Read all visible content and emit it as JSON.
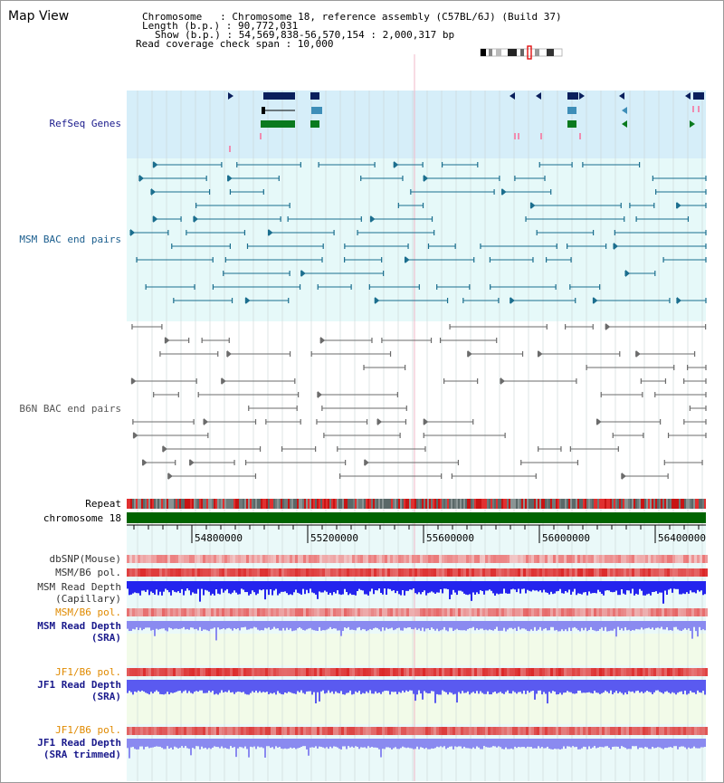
{
  "title": "Map View",
  "info": {
    "chromosome": "Chromosome   : Chromosome 18, reference assembly (C57BL/6J) (Build 37)",
    "length": "Length (b.p.) : 90,772,031",
    "show": "Show (b.p.) : 54,569,838-56,570,154 : 2,000,317 bp",
    "coverage": "Read coverage check span : 10,000"
  },
  "tracks": {
    "refseq": "RefSeq Genes",
    "msm_bac": "MSM BAC end pairs",
    "b6n_bac": "B6N BAC end pairs",
    "repeat": "Repeat",
    "chromosome": "chromosome 18",
    "dbsnp": "dbSNP(Mouse)",
    "msm_pol": "MSM/B6 pol.",
    "msm_depth_cap_1": "MSM Read Depth",
    "msm_depth_cap_2": "(Capillary)",
    "msm_pol_2": "MSM/B6 pol.",
    "msm_depth_sra_1": "MSM Read Depth",
    "msm_depth_sra_2": "(SRA)",
    "jf1_pol": "JF1/B6 pol.",
    "jf1_depth_sra_1": "JF1 Read Depth",
    "jf1_depth_sra_2": "(SRA)",
    "jf1_pol_2": "JF1/B6 pol.",
    "jf1_depth_trim_1": "JF1 Read Depth",
    "jf1_depth_trim_2": "(SRA trimmed)"
  },
  "axis_ticks": [
    "54800000",
    "55200000",
    "55600000",
    "56000000",
    "56400000"
  ],
  "colors": {
    "refseq_bg": "#d6eef9",
    "msm_bg": "#e6f9f9",
    "gene_navy": "#0a1f5c",
    "gene_teal": "#3e8eb8",
    "gene_green": "#0a7a1e",
    "msm_pair": "#1b6e8e",
    "b6n_pair": "#6b6b6b",
    "chrom_bar": "#006400",
    "depth_blue": "#2424ee",
    "depth_light": "#8a8af0",
    "pol_red": "#e8302c",
    "label_navy": "#1a1a8c",
    "label_orange": "#e08a00"
  }
}
